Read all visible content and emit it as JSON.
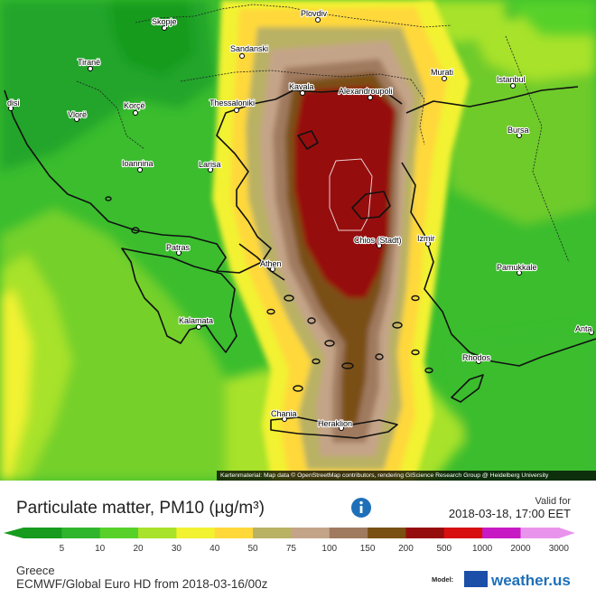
{
  "cities": [
    {
      "name": "Skopje"
    },
    {
      "name": "Plovdiv"
    },
    {
      "name": "Sandanski"
    },
    {
      "name": "Tiranë"
    },
    {
      "name": "Murati"
    },
    {
      "name": "Istanbul"
    },
    {
      "name": "Kavala"
    },
    {
      "name": "Alexandroupoli"
    },
    {
      "name": "Thessaloniki"
    },
    {
      "name": "Korçë"
    },
    {
      "name": "Vlorë"
    },
    {
      "name": "disi"
    },
    {
      "name": "Bursa"
    },
    {
      "name": "Ioannina"
    },
    {
      "name": "Larisa"
    },
    {
      "name": "Chios (Stadt)"
    },
    {
      "name": "Izmir"
    },
    {
      "name": "Patras"
    },
    {
      "name": "Athen"
    },
    {
      "name": "Pamukkale"
    },
    {
      "name": "Kalamata"
    },
    {
      "name": "Anta"
    },
    {
      "name": "Rhodos"
    },
    {
      "name": "Chania"
    },
    {
      "name": "Heraklion"
    }
  ],
  "attribution": "Kartenmaterial: Map data © OpenStreetMap contributors, rendering GIScience Research Group @ Heidelberg University",
  "legend": {
    "title": "Particulate matter, PM10 (µg/m³)",
    "valid_label": "Valid for",
    "valid_date": "2018-03-18, 17:00 EET",
    "scale": [
      {
        "label": "5",
        "color": "#169b1e"
      },
      {
        "label": "10",
        "color": "#2fb52c"
      },
      {
        "label": "20",
        "color": "#57d12a"
      },
      {
        "label": "30",
        "color": "#a8e22a"
      },
      {
        "label": "40",
        "color": "#f2f230"
      },
      {
        "label": "50",
        "color": "#ffd83a"
      },
      {
        "label": "75",
        "color": "#b9b164"
      },
      {
        "label": "100",
        "color": "#c4a488"
      },
      {
        "label": "150",
        "color": "#a07a5f"
      },
      {
        "label": "200",
        "color": "#7a4f12"
      },
      {
        "label": "500",
        "color": "#960d0d"
      },
      {
        "label": "1000",
        "color": "#d80f0f"
      },
      {
        "label": "2000",
        "color": "#c71ac4"
      },
      {
        "label": "3000",
        "color": "#e994ec"
      }
    ],
    "region": "Greece",
    "model_line": "ECMWF/Global Euro HD from 2018-03-16/00z",
    "model_label": "Model:",
    "brand": "weather.us"
  }
}
